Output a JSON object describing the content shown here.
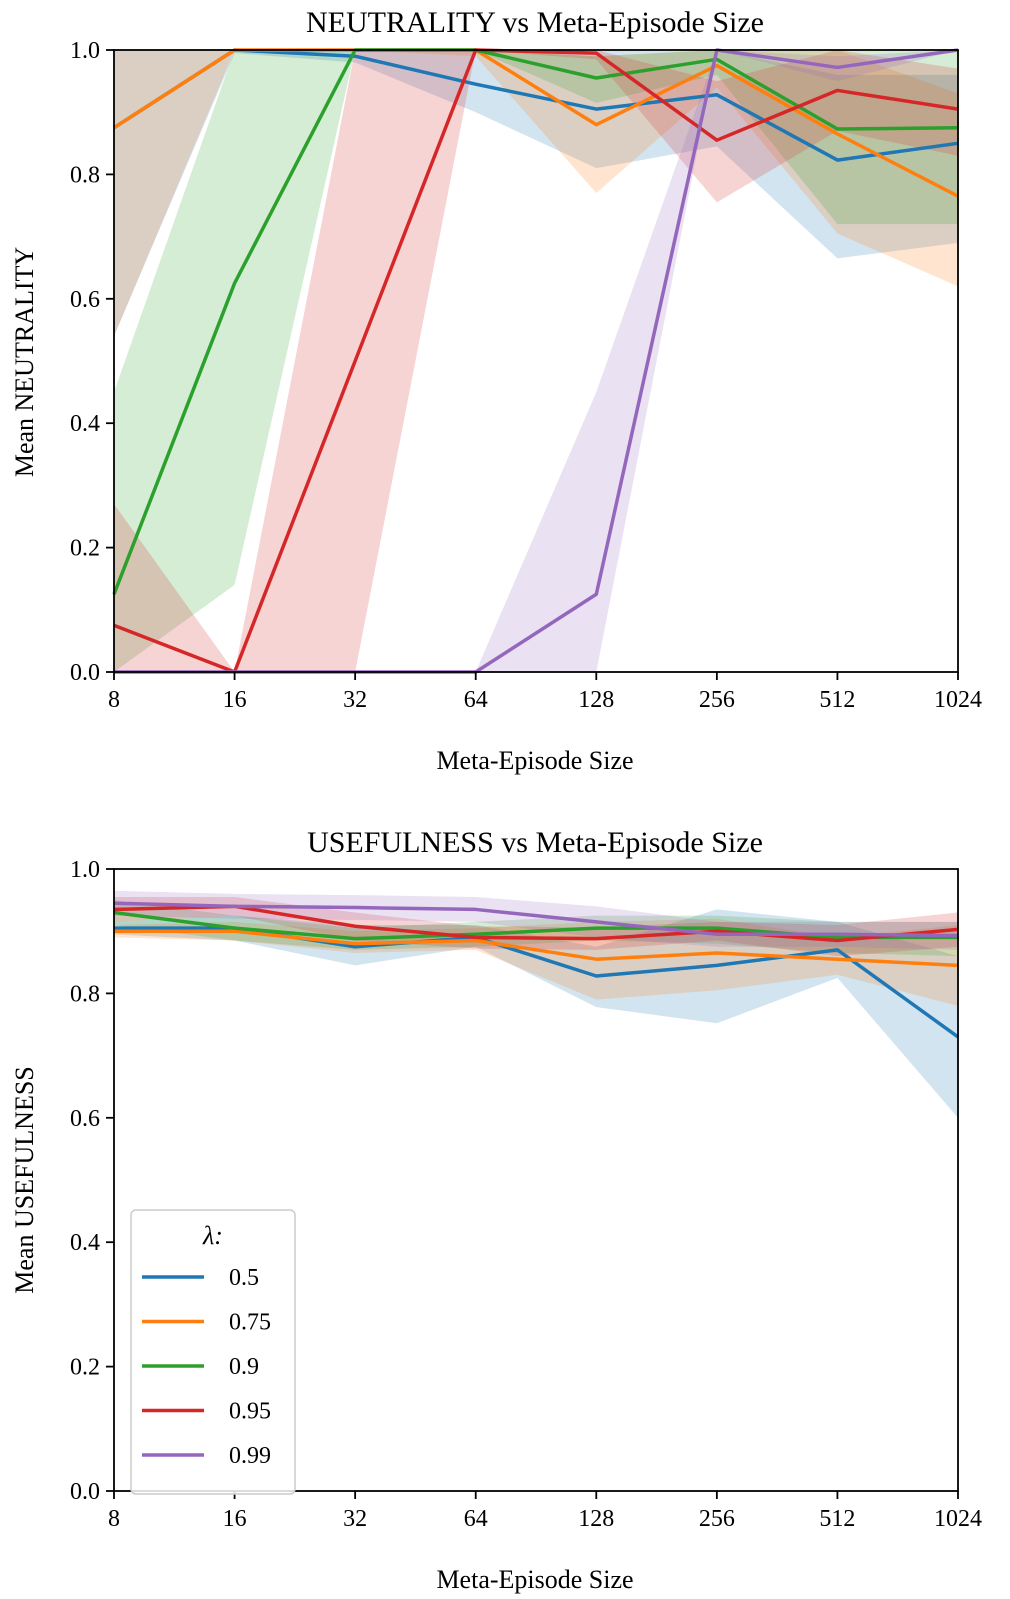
{
  "chart_data": [
    {
      "type": "line",
      "title": "NEUTRALITY vs Meta-Episode Size",
      "xlabel": "Meta-Episode Size",
      "ylabel": "Mean NEUTRALITY",
      "x_scale": "log2",
      "x": [
        8,
        16,
        32,
        64,
        128,
        256,
        512,
        1024
      ],
      "x_tick_labels": [
        "8",
        "16",
        "32",
        "64",
        "128",
        "256",
        "512",
        "1024"
      ],
      "ylim": [
        0.0,
        1.0
      ],
      "y_ticks": [
        "0.0",
        "0.2",
        "0.4",
        "0.6",
        "0.8",
        "1.0"
      ],
      "grid": false,
      "series": [
        {
          "name": "0.5",
          "color": "#1f77b4",
          "values": [
            0.875,
            1.0,
            0.99,
            0.945,
            0.905,
            0.928,
            0.823,
            0.85
          ],
          "lower": [
            0.54,
            0.995,
            0.98,
            0.9,
            0.81,
            0.845,
            0.665,
            0.69
          ],
          "upper": [
            1.0,
            1.0,
            1.0,
            1.0,
            1.0,
            1.0,
            0.96,
            0.96
          ]
        },
        {
          "name": "0.75",
          "color": "#ff7f0e",
          "values": [
            0.875,
            1.0,
            1.0,
            1.0,
            0.88,
            0.975,
            0.865,
            0.765
          ],
          "lower": [
            0.54,
            1.0,
            1.0,
            0.99,
            0.77,
            0.94,
            0.705,
            0.62
          ],
          "upper": [
            1.0,
            1.0,
            1.0,
            1.0,
            0.99,
            1.0,
            1.0,
            0.93
          ]
        },
        {
          "name": "0.9",
          "color": "#2ca02c",
          "values": [
            0.125,
            0.625,
            1.0,
            1.0,
            0.955,
            0.985,
            0.873,
            0.875
          ],
          "lower": [
            0.0,
            0.14,
            1.0,
            1.0,
            0.915,
            0.96,
            0.72,
            0.72
          ],
          "upper": [
            0.45,
            1.0,
            1.0,
            1.0,
            0.99,
            1.0,
            1.0,
            1.0
          ]
        },
        {
          "name": "0.95",
          "color": "#d62728",
          "values": [
            0.075,
            0.0,
            0.5,
            1.0,
            0.995,
            0.855,
            0.935,
            0.905
          ],
          "lower": [
            0.0,
            0.0,
            0.0,
            1.0,
            0.985,
            0.755,
            0.87,
            0.83
          ],
          "upper": [
            0.27,
            0.0,
            1.0,
            1.0,
            1.0,
            0.95,
            1.0,
            0.97
          ]
        },
        {
          "name": "0.99",
          "color": "#9467bd",
          "values": [
            0.0,
            0.0,
            0.0,
            0.0,
            0.125,
            1.0,
            0.972,
            1.0
          ],
          "lower": [
            0.0,
            0.0,
            0.0,
            0.0,
            0.0,
            1.0,
            0.95,
            1.0
          ],
          "upper": [
            0.0,
            0.0,
            0.0,
            0.0,
            0.45,
            1.0,
            0.99,
            1.0
          ]
        }
      ]
    },
    {
      "type": "line",
      "title": "USEFULNESS vs Meta-Episode Size",
      "xlabel": "Meta-Episode Size",
      "ylabel": "Mean USEFULNESS",
      "x_scale": "log2",
      "x": [
        8,
        16,
        32,
        64,
        128,
        256,
        512,
        1024
      ],
      "x_tick_labels": [
        "8",
        "16",
        "32",
        "64",
        "128",
        "256",
        "512",
        "1024"
      ],
      "ylim": [
        0.0,
        1.0
      ],
      "y_ticks": [
        "0.0",
        "0.2",
        "0.4",
        "0.6",
        "0.8",
        "1.0"
      ],
      "grid": false,
      "legend": {
        "title": "λ:",
        "position": "lower left"
      },
      "series": [
        {
          "name": "0.5",
          "color": "#1f77b4",
          "values": [
            0.905,
            0.905,
            0.875,
            0.89,
            0.828,
            0.845,
            0.87,
            0.73
          ],
          "lower": [
            0.895,
            0.885,
            0.845,
            0.875,
            0.778,
            0.752,
            0.825,
            0.6
          ],
          "upper": [
            0.915,
            0.925,
            0.91,
            0.91,
            0.875,
            0.935,
            0.915,
            0.86
          ]
        },
        {
          "name": "0.75",
          "color": "#ff7f0e",
          "values": [
            0.9,
            0.9,
            0.88,
            0.885,
            0.855,
            0.865,
            0.855,
            0.845
          ],
          "lower": [
            0.89,
            0.885,
            0.865,
            0.87,
            0.79,
            0.805,
            0.83,
            0.78
          ],
          "upper": [
            0.91,
            0.915,
            0.9,
            0.905,
            0.915,
            0.92,
            0.89,
            0.91
          ]
        },
        {
          "name": "0.9",
          "color": "#2ca02c",
          "values": [
            0.93,
            0.905,
            0.888,
            0.895,
            0.905,
            0.905,
            0.89,
            0.89
          ],
          "lower": [
            0.91,
            0.885,
            0.87,
            0.875,
            0.885,
            0.88,
            0.865,
            0.86
          ],
          "upper": [
            0.95,
            0.925,
            0.905,
            0.915,
            0.925,
            0.925,
            0.915,
            0.915
          ]
        },
        {
          "name": "0.95",
          "color": "#d62728",
          "values": [
            0.935,
            0.94,
            0.908,
            0.89,
            0.888,
            0.9,
            0.885,
            0.903
          ],
          "lower": [
            0.915,
            0.925,
            0.885,
            0.872,
            0.87,
            0.885,
            0.86,
            0.875
          ],
          "upper": [
            0.955,
            0.955,
            0.93,
            0.908,
            0.906,
            0.915,
            0.91,
            0.93
          ]
        },
        {
          "name": "0.99",
          "color": "#9467bd",
          "values": [
            0.945,
            0.94,
            0.938,
            0.935,
            0.915,
            0.895,
            0.895,
            0.893
          ],
          "lower": [
            0.925,
            0.92,
            0.918,
            0.915,
            0.89,
            0.875,
            0.875,
            0.87
          ],
          "upper": [
            0.965,
            0.96,
            0.958,
            0.955,
            0.94,
            0.915,
            0.915,
            0.915
          ]
        }
      ]
    }
  ]
}
